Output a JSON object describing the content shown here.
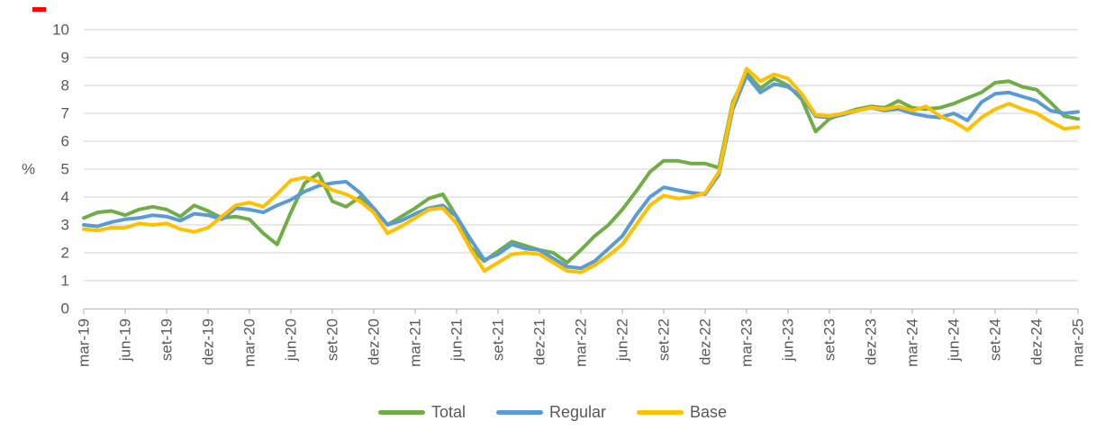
{
  "chart": {
    "y_axis": {
      "label": "%",
      "tick_labels": [
        "0",
        "1",
        "2",
        "3",
        "4",
        "5",
        "6",
        "7",
        "8",
        "9",
        "10"
      ]
    },
    "x_axis": {
      "visible_tick_labels": [
        "mar-19",
        "jun-19",
        "set-19",
        "dez-19",
        "mar-20",
        "jun-20",
        "set-20",
        "dez-20",
        "mar-21",
        "jun-21",
        "set-21",
        "dez-21",
        "mar-22",
        "jun-22",
        "set-22",
        "dez-22",
        "mar-23",
        "jun-23",
        "set-23",
        "dez-23",
        "mar-24",
        "jun-24",
        "set-24",
        "dez-24",
        "mar-25"
      ]
    },
    "legend": {
      "items": [
        {
          "label": "Total",
          "color": "#70AD47"
        },
        {
          "label": "Regular",
          "color": "#5B9BD5"
        },
        {
          "label": "Base",
          "color": "#FFC000"
        }
      ]
    },
    "colors": {
      "gridline": "#D9D9D9",
      "axis_line": "#BFBFBF",
      "tick_text": "#595959",
      "red_mark": "#FF0000"
    }
  },
  "chart_data": {
    "type": "line",
    "title": "",
    "ylabel": "%",
    "ylim": [
      0,
      10
    ],
    "grid": "horizontal",
    "legend_position": "bottom-center",
    "x_tick_shown_every": 3,
    "x": [
      "mar-19",
      "abr-19",
      "mai-19",
      "jun-19",
      "jul-19",
      "ago-19",
      "set-19",
      "out-19",
      "nov-19",
      "dez-19",
      "jan-20",
      "fev-20",
      "mar-20",
      "abr-20",
      "mai-20",
      "jun-20",
      "jul-20",
      "ago-20",
      "set-20",
      "out-20",
      "nov-20",
      "dez-20",
      "jan-21",
      "fev-21",
      "mar-21",
      "abr-21",
      "mai-21",
      "jun-21",
      "jul-21",
      "ago-21",
      "set-21",
      "out-21",
      "nov-21",
      "dez-21",
      "jan-22",
      "fev-22",
      "mar-22",
      "abr-22",
      "mai-22",
      "jun-22",
      "jul-22",
      "ago-22",
      "set-22",
      "out-22",
      "nov-22",
      "dez-22",
      "jan-23",
      "fev-23",
      "mar-23",
      "abr-23",
      "mai-23",
      "jun-23",
      "jul-23",
      "ago-23",
      "set-23",
      "out-23",
      "nov-23",
      "dez-23",
      "jan-24",
      "fev-24",
      "mar-24",
      "abr-24",
      "mai-24",
      "jun-24",
      "jul-24",
      "ago-24",
      "set-24",
      "out-24",
      "nov-24",
      "dez-24",
      "jan-25",
      "fev-25",
      "mar-25"
    ],
    "series": [
      {
        "name": "Total",
        "color": "#70AD47",
        "values": [
          3.25,
          3.45,
          3.5,
          3.35,
          3.55,
          3.65,
          3.55,
          3.3,
          3.7,
          3.5,
          3.25,
          3.3,
          3.2,
          2.7,
          2.3,
          3.45,
          4.5,
          4.85,
          3.85,
          3.65,
          4.0,
          3.6,
          3.0,
          3.3,
          3.6,
          3.95,
          4.1,
          3.3,
          2.2,
          1.7,
          2.05,
          2.4,
          2.25,
          2.1,
          2.0,
          1.65,
          2.1,
          2.6,
          3.0,
          3.55,
          4.2,
          4.9,
          5.3,
          5.3,
          5.2,
          5.2,
          5.05,
          7.4,
          8.45,
          7.9,
          8.25,
          8.0,
          7.5,
          6.35,
          6.8,
          7.0,
          7.15,
          7.25,
          7.2,
          7.45,
          7.2,
          7.15,
          7.2,
          7.35,
          7.55,
          7.75,
          8.1,
          8.15,
          7.95,
          7.85,
          7.4,
          6.9,
          6.8
        ]
      },
      {
        "name": "Regular",
        "color": "#5B9BD5",
        "values": [
          3.0,
          2.95,
          3.1,
          3.2,
          3.25,
          3.35,
          3.3,
          3.15,
          3.4,
          3.35,
          3.2,
          3.6,
          3.55,
          3.45,
          3.7,
          3.9,
          4.2,
          4.4,
          4.5,
          4.55,
          4.15,
          3.6,
          3.0,
          3.15,
          3.4,
          3.6,
          3.7,
          3.3,
          2.5,
          1.75,
          1.95,
          2.3,
          2.15,
          2.1,
          1.8,
          1.5,
          1.45,
          1.7,
          2.15,
          2.6,
          3.35,
          4.0,
          4.35,
          4.25,
          4.15,
          4.1,
          4.8,
          7.15,
          8.35,
          7.75,
          8.05,
          7.95,
          7.6,
          6.9,
          6.85,
          6.95,
          7.1,
          7.2,
          7.1,
          7.15,
          7.0,
          6.9,
          6.85,
          7.0,
          6.75,
          7.4,
          7.7,
          7.75,
          7.6,
          7.45,
          7.1,
          7.0,
          7.05
        ]
      },
      {
        "name": "Base",
        "color": "#FFC000",
        "values": [
          2.85,
          2.8,
          2.9,
          2.9,
          3.05,
          3.0,
          3.05,
          2.85,
          2.75,
          2.9,
          3.3,
          3.7,
          3.8,
          3.65,
          4.1,
          4.6,
          4.7,
          4.55,
          4.25,
          4.1,
          3.85,
          3.45,
          2.7,
          2.95,
          3.25,
          3.55,
          3.6,
          3.05,
          2.15,
          1.35,
          1.65,
          1.95,
          2.0,
          1.95,
          1.65,
          1.35,
          1.3,
          1.55,
          1.9,
          2.3,
          3.0,
          3.7,
          4.05,
          3.95,
          4.0,
          4.15,
          4.9,
          7.3,
          8.6,
          8.15,
          8.4,
          8.25,
          7.7,
          6.95,
          6.9,
          7.0,
          7.1,
          7.2,
          7.15,
          7.25,
          7.1,
          7.25,
          6.9,
          6.7,
          6.4,
          6.85,
          7.15,
          7.35,
          7.15,
          7.0,
          6.7,
          6.45,
          6.5
        ]
      }
    ]
  }
}
